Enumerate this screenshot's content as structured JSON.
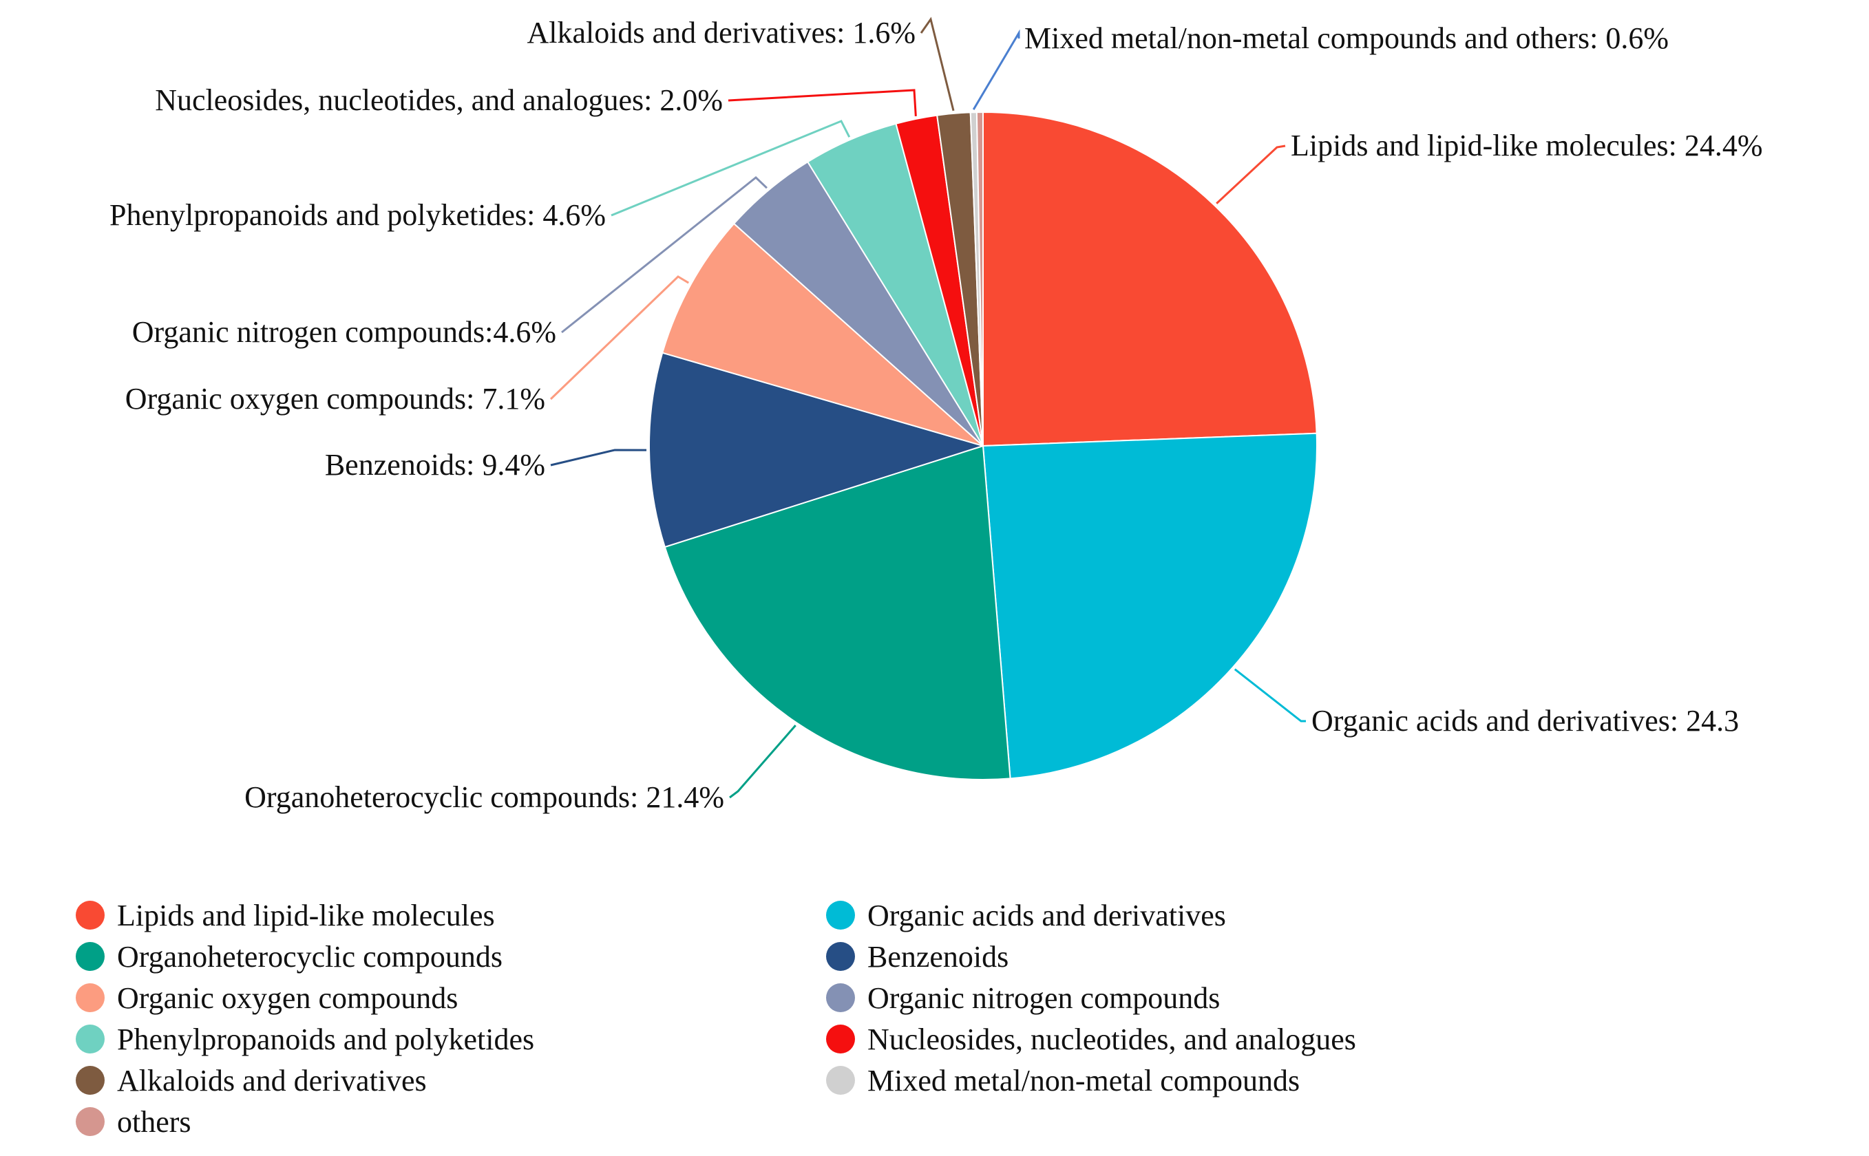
{
  "chart_data": {
    "type": "pie",
    "slices": [
      {
        "name": "Lipids and lipid-like molecules",
        "value": 24.4,
        "color": "#F94A33",
        "label": "Lipids and lipid-like molecules: 24.4%"
      },
      {
        "name": "Organic acids and derivatives",
        "value": 24.3,
        "color": "#00BBD6",
        "label": "Organic acids and derivatives: 24.3"
      },
      {
        "name": "Organoheterocyclic compounds",
        "value": 21.4,
        "color": "#00A087",
        "label": "Organoheterocyclic compounds: 21.4%"
      },
      {
        "name": "Benzenoids",
        "value": 9.4,
        "color": "#264E85",
        "label": "Benzenoids: 9.4%"
      },
      {
        "name": "Organic oxygen compounds",
        "value": 7.1,
        "color": "#FC9C80",
        "label": "Organic oxygen compounds: 7.1%"
      },
      {
        "name": "Organic nitrogen compounds",
        "value": 4.6,
        "color": "#8491B4",
        "label": "Organic nitrogen compounds:4.6%"
      },
      {
        "name": "Phenylpropanoids and polyketides",
        "value": 4.6,
        "color": "#6FD1C1",
        "label": "Phenylpropanoids and polyketides: 4.6%"
      },
      {
        "name": "Nucleosides, nucleotides, and analogues",
        "value": 2.0,
        "color": "#F50F0F",
        "label": "Nucleosides, nucleotides, and analogues: 2.0%"
      },
      {
        "name": "Alkaloids and derivatives",
        "value": 1.6,
        "color": "#7E5B40",
        "label": "Alkaloids and derivatives: 1.6%"
      },
      {
        "name": "Mixed metal/non-metal compounds",
        "value": 0.3,
        "color": "#D0D0D0",
        "label": "Mixed metal/non-metal compounds and others: 0.6%"
      },
      {
        "name": "others",
        "value": 0.3,
        "color": "#D5968F",
        "label": ""
      }
    ],
    "legend": {
      "placement": "bottom",
      "items": [
        {
          "name": "Lipids and lipid-like molecules",
          "color": "#F94A33"
        },
        {
          "name": "Organic acids and derivatives",
          "color": "#00BBD6"
        },
        {
          "name": "Organoheterocyclic compounds",
          "color": "#00A087"
        },
        {
          "name": "Benzenoids",
          "color": "#264E85"
        },
        {
          "name": "Organic oxygen compounds",
          "color": "#FC9C80"
        },
        {
          "name": "Organic nitrogen compounds",
          "color": "#8491B4"
        },
        {
          "name": "Phenylpropanoids and polyketides",
          "color": "#6FD1C1"
        },
        {
          "name": "Nucleosides, nucleotides, and analogues",
          "color": "#F50F0F"
        },
        {
          "name": "Alkaloids and derivatives",
          "color": "#7E5B40"
        },
        {
          "name": "Mixed metal/non-metal compounds",
          "color": "#D0D0D0"
        },
        {
          "name": "others",
          "color": "#D5968F"
        }
      ]
    }
  }
}
